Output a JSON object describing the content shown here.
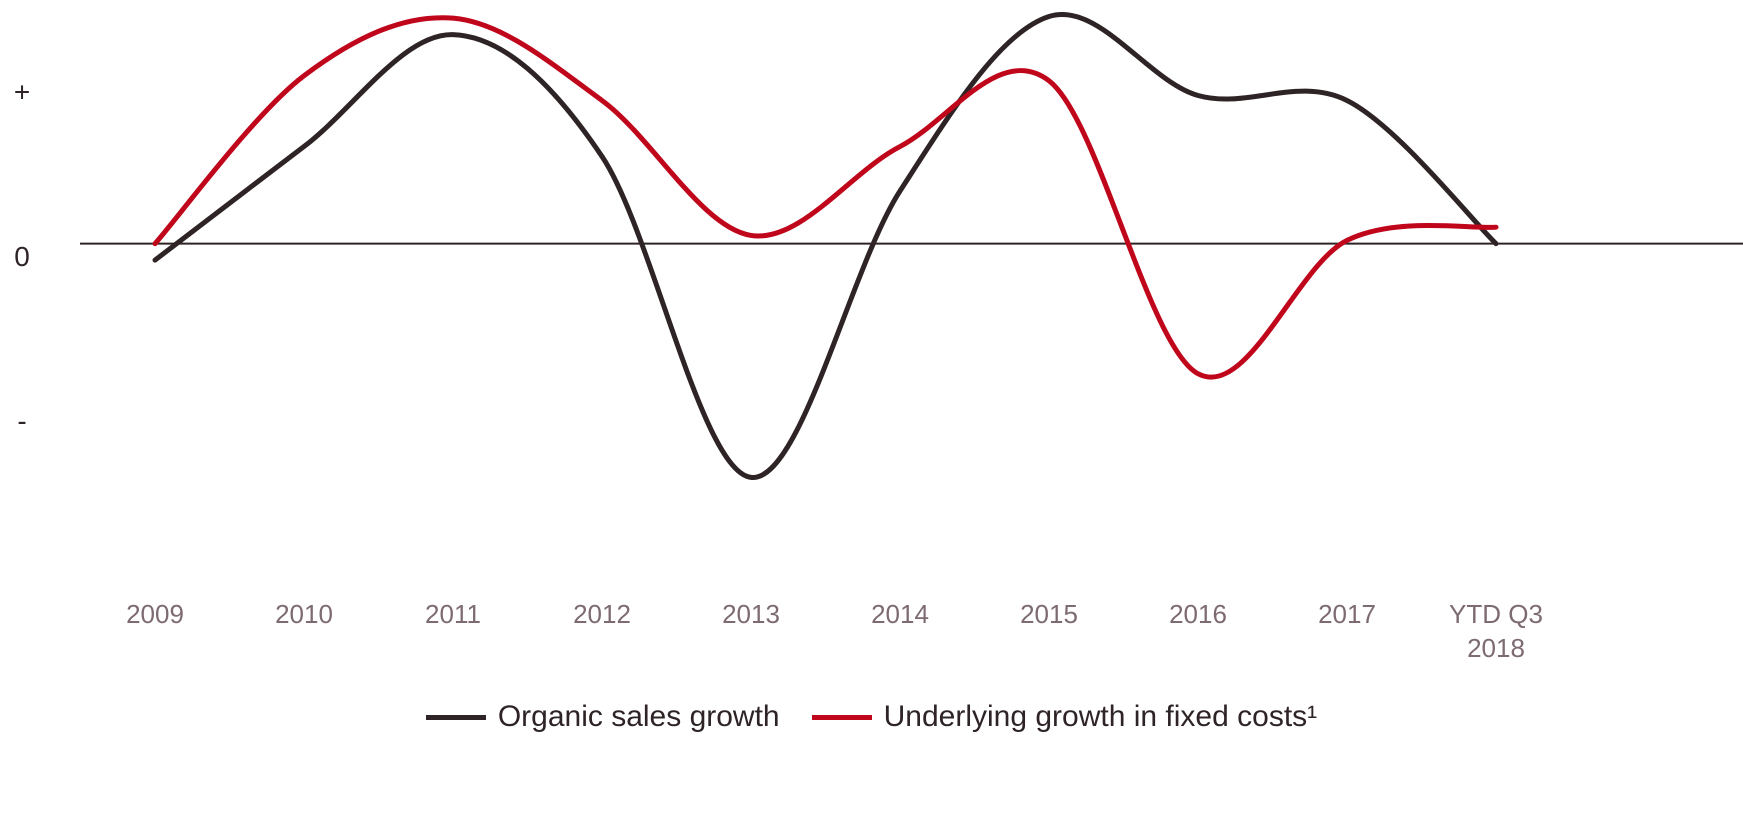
{
  "chart_data": {
    "type": "line",
    "categories": [
      "2009",
      "2010",
      "2011",
      "2012",
      "2013",
      "2014",
      "2015",
      "2016",
      "2017",
      "YTD Q3 2018"
    ],
    "series": [
      {
        "name": "Organic sales growth",
        "color": "#2e2426",
        "values": [
          -0.1,
          0.59,
          1.27,
          0.53,
          -1.42,
          0.32,
          1.38,
          0.9,
          0.87,
          0
        ]
      },
      {
        "name": "Underlying growth in fixed costs¹",
        "color": "#c0061b",
        "values": [
          0,
          1.02,
          1.37,
          0.87,
          0.05,
          0.59,
          0.99,
          -0.79,
          0.02,
          0.1
        ]
      }
    ],
    "ylim": [
      -1.6,
      1.45
    ],
    "yticks": [
      {
        "value": 1,
        "label": "+"
      },
      0,
      {
        "value": -1,
        "label": "-"
      }
    ],
    "zero_line": true
  }
}
